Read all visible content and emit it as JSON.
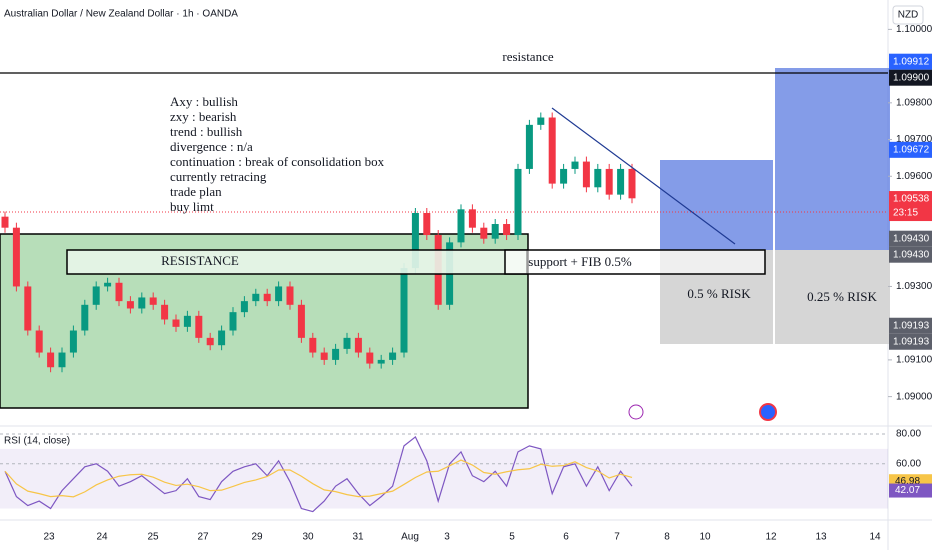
{
  "header": {
    "title": "Australian Dollar / New Zealand Dollar · 1h · OANDA",
    "currency": "NZD"
  },
  "notes": [
    "Axy : bullish",
    "zxy : bearish",
    "trend : bullish",
    "divergence : n/a",
    "continuation : break of consolidation box",
    "currently retracing",
    "trade plan",
    "buy limt"
  ],
  "annotations": {
    "resistance_line": "resistance",
    "resistance_box": "RESISTANCE",
    "support_box": "support + FIB 0.5%",
    "risk_1": "0.5 % RISK",
    "risk_2": "0.25 % RISK"
  },
  "price_axis": {
    "ylim": [
      1.0892,
      1.1008
    ],
    "ticks": [
      {
        "value": 1.1,
        "label": "1.10000"
      },
      {
        "value": 1.098,
        "label": "1.09800"
      },
      {
        "value": 1.097,
        "label": "1.09700"
      },
      {
        "value": 1.096,
        "label": "1.09600"
      },
      {
        "value": 1.093,
        "label": "1.09300"
      },
      {
        "value": 1.091,
        "label": "1.09100"
      },
      {
        "value": 1.09,
        "label": "1.09000"
      }
    ],
    "tags": [
      {
        "value": 1.09912,
        "label": "1.09912",
        "color": "#2962ff"
      },
      {
        "value": 1.099,
        "label": "1.09900",
        "color": "#131722"
      },
      {
        "value": 1.09672,
        "label": "1.09672",
        "color": "#2962ff"
      },
      {
        "value": 1.09538,
        "label": "1.09538",
        "color": "#f23645",
        "sub": "23:15"
      },
      {
        "value": 1.0943,
        "label": "1.09430",
        "color": "#5d606b"
      },
      {
        "value": 1.0943,
        "label": "1.09430",
        "color": "#5d606b"
      },
      {
        "value": 1.09193,
        "label": "1.09193",
        "color": "#5d606b"
      },
      {
        "value": 1.09193,
        "label": "1.09193",
        "color": "#5d606b"
      }
    ]
  },
  "price": {
    "closes": [
      1.0946,
      1.093,
      1.0918,
      1.0912,
      1.0908,
      1.0912,
      1.0918,
      1.0925,
      1.093,
      1.0931,
      1.0926,
      1.0924,
      1.0927,
      1.0925,
      1.0921,
      1.0919,
      1.0922,
      1.0916,
      1.0914,
      1.0918,
      1.0923,
      1.0926,
      1.0928,
      1.0926,
      1.093,
      1.0925,
      1.0916,
      1.0912,
      1.091,
      1.0913,
      1.0916,
      1.0912,
      1.0909,
      1.091,
      1.0912,
      1.0935,
      1.095,
      1.0944,
      1.0925,
      1.0942,
      1.0951,
      1.0946,
      1.0943,
      1.0947,
      1.0944,
      1.0962,
      1.0974,
      1.0976,
      1.0958,
      1.0962,
      1.0964,
      1.0957,
      1.0962,
      1.0955,
      1.0962,
      1.0954
    ]
  },
  "rsi": {
    "title": "RSI (14, close)",
    "ylim": [
      84,
      25
    ],
    "ticks": [
      {
        "value": 80,
        "label": "80.00"
      },
      {
        "value": 60,
        "label": "60.00"
      }
    ],
    "tags": [
      {
        "value": 46.98,
        "label": "46.98",
        "color": "#f7c548"
      },
      {
        "value": 42.07,
        "label": "42.07",
        "color": "#7e57c2"
      }
    ],
    "values": [
      55,
      38,
      32,
      35,
      30,
      42,
      50,
      58,
      60,
      55,
      45,
      48,
      52,
      46,
      40,
      42,
      50,
      38,
      36,
      48,
      55,
      58,
      60,
      52,
      62,
      48,
      30,
      28,
      35,
      45,
      50,
      40,
      32,
      38,
      45,
      72,
      78,
      62,
      35,
      60,
      68,
      52,
      48,
      55,
      45,
      68,
      72,
      70,
      40,
      58,
      60,
      45,
      58,
      42,
      55,
      45
    ]
  },
  "time_axis": [
    "23",
    "24",
    "25",
    "27",
    "29",
    "30",
    "31",
    "Aug",
    "3",
    "5",
    "6",
    "7",
    "8",
    "10",
    "12",
    "13",
    "14"
  ]
}
